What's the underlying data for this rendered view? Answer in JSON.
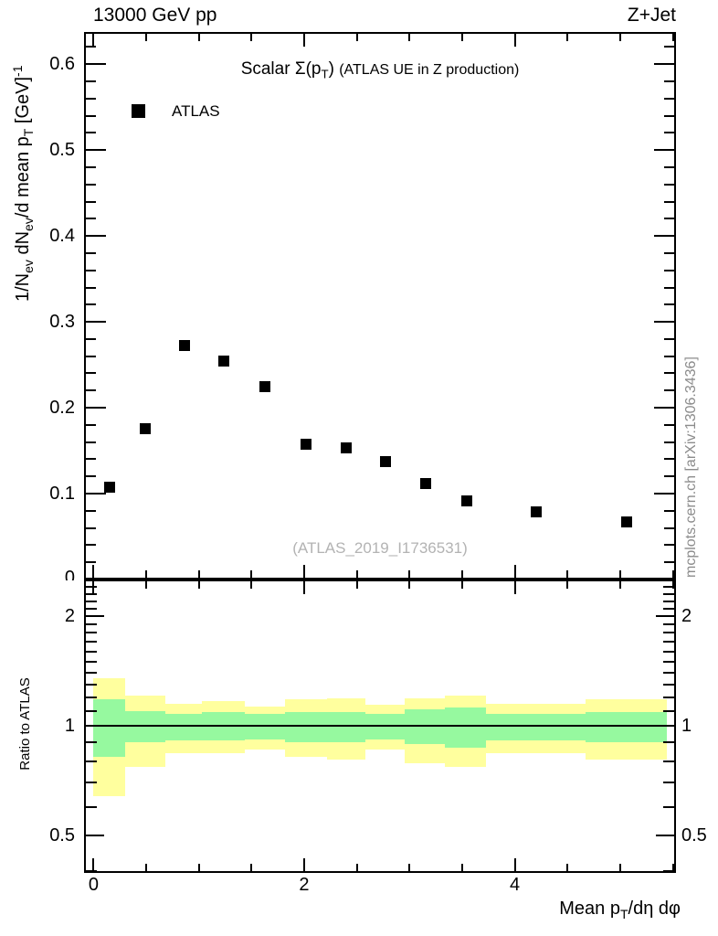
{
  "header": {
    "left": "13000 GeV pp",
    "right": "Z+Jet"
  },
  "title": {
    "lead": "Scalar Σ(p",
    "sub": "T",
    "tail": ")",
    "note": "(ATLAS UE in Z production)"
  },
  "legend": {
    "label": "ATLAS",
    "marker_color": "#000000",
    "marker": "filled-square"
  },
  "watermark": "(ATLAS_2019_I1736531)",
  "side_note": "mcplots.cern.ch [arXiv:1306.3436]",
  "axis_labels": {
    "y_main": {
      "p1": "1/N",
      "s1": "ev",
      "p2": " dN",
      "s2": "ev",
      "p3": "/d mean p",
      "s3": "T",
      "p4": " [GeV]",
      "sup": "-1"
    },
    "y_ratio": "Ratio to ATLAS",
    "x": {
      "p1": "Mean p",
      "s1": "T",
      "p2": "/dη dφ"
    }
  },
  "chart_data": {
    "type": "scatter",
    "title": "Scalar Σ(pT) (ATLAS UE in Z production)",
    "xlabel": "Mean pT/dη dφ",
    "xlim": [
      -0.09,
      5.53
    ],
    "xticks_major": [
      0,
      2,
      4
    ],
    "xtick_minor_step": 0.5,
    "grid": false,
    "legend_position": "top-left-inside",
    "main_panel": {
      "ylabel": "1/Nev dNev/d mean pT [GeV]^-1",
      "ylim": [
        0,
        0.6375
      ],
      "yscale": "linear",
      "yticks_major": [
        0,
        0.1,
        0.2,
        0.3,
        0.4,
        0.5,
        0.6
      ],
      "ytick_minor_step": 0.02,
      "series": [
        {
          "name": "ATLAS",
          "marker": "filled-square",
          "color": "#000000",
          "x": [
            0.15,
            0.49,
            0.86,
            1.24,
            1.63,
            2.02,
            2.4,
            2.77,
            3.15,
            3.54,
            4.2,
            5.06
          ],
          "y": [
            0.108,
            0.176,
            0.272,
            0.254,
            0.225,
            0.158,
            0.153,
            0.137,
            0.112,
            0.091,
            0.079,
            0.067
          ]
        }
      ]
    },
    "ratio_panel": {
      "ylabel": "Ratio to ATLAS",
      "yscale": "log",
      "ylim": [
        0.395,
        2.52
      ],
      "yticks_major": [
        0.5,
        1,
        2
      ],
      "yticks_minor": [
        0.4,
        0.6,
        0.7,
        0.8,
        0.9,
        1.1,
        1.2,
        1.3,
        1.4,
        1.5,
        1.6,
        1.7,
        1.8,
        1.9,
        2.1,
        2.2,
        2.3,
        2.4,
        2.5
      ],
      "reference_line": 1,
      "band_colors": {
        "outer": "#ffff9e",
        "inner": "#96f99f"
      },
      "bin_edges": [
        0.0,
        0.3,
        0.68,
        1.03,
        1.44,
        1.82,
        2.22,
        2.58,
        2.95,
        3.34,
        3.73,
        4.67,
        5.44
      ],
      "outer_hi": [
        1.35,
        1.21,
        1.15,
        1.17,
        1.13,
        1.18,
        1.19,
        1.14,
        1.19,
        1.21,
        1.15,
        1.18
      ],
      "outer_lo": [
        0.64,
        0.77,
        0.84,
        0.84,
        0.86,
        0.82,
        0.81,
        0.86,
        0.79,
        0.77,
        0.84,
        0.81
      ],
      "inner_hi": [
        1.18,
        1.1,
        1.08,
        1.09,
        1.08,
        1.09,
        1.09,
        1.08,
        1.11,
        1.12,
        1.08,
        1.09
      ],
      "inner_lo": [
        0.82,
        0.9,
        0.91,
        0.91,
        0.92,
        0.9,
        0.9,
        0.92,
        0.89,
        0.87,
        0.91,
        0.9
      ]
    }
  }
}
